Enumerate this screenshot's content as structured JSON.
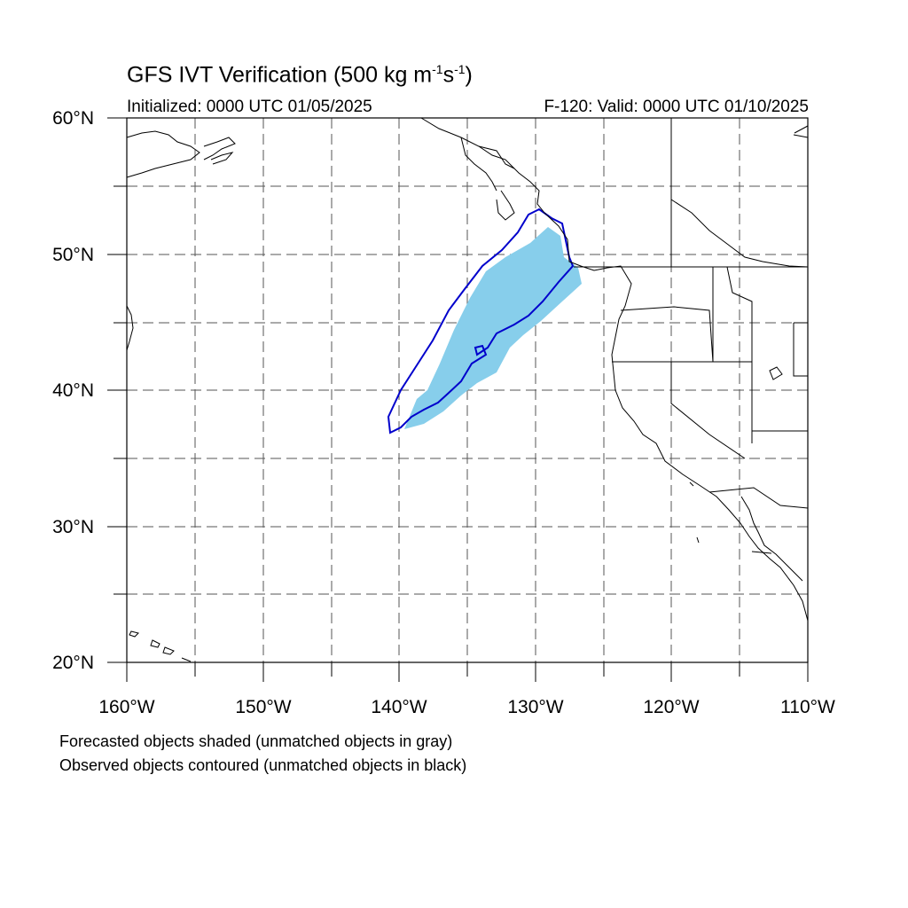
{
  "title": {
    "main": "GFS IVT Verification (500 kg m",
    "unit_exp1": "-1",
    "unit_mid": "s",
    "unit_exp2": "-1",
    "unit_close": ")"
  },
  "subtitle": {
    "initialized": "Initialized: 0000 UTC 01/05/2025",
    "valid": "F-120: Valid: 0000 UTC 01/10/2025"
  },
  "axes": {
    "lat_labels": [
      "60°N",
      "50°N",
      "40°N",
      "30°N",
      "20°N"
    ],
    "lon_labels": [
      "160°W",
      "150°W",
      "140°W",
      "130°W",
      "120°W",
      "110°W"
    ],
    "lat_range": [
      20,
      60
    ],
    "lon_range": [
      -160,
      -110
    ],
    "grid": "dashed every 5 degrees"
  },
  "colors": {
    "forecast_fill": "#87CEEB",
    "observed_contour": "#0000CC",
    "coastline": "#000000",
    "grid": "#555555"
  },
  "legend": {
    "forecast_note": "Forecasted objects shaded (unmatched objects in gray)",
    "observed_note": "Observed objects contoured (unmatched objects in black)"
  }
}
